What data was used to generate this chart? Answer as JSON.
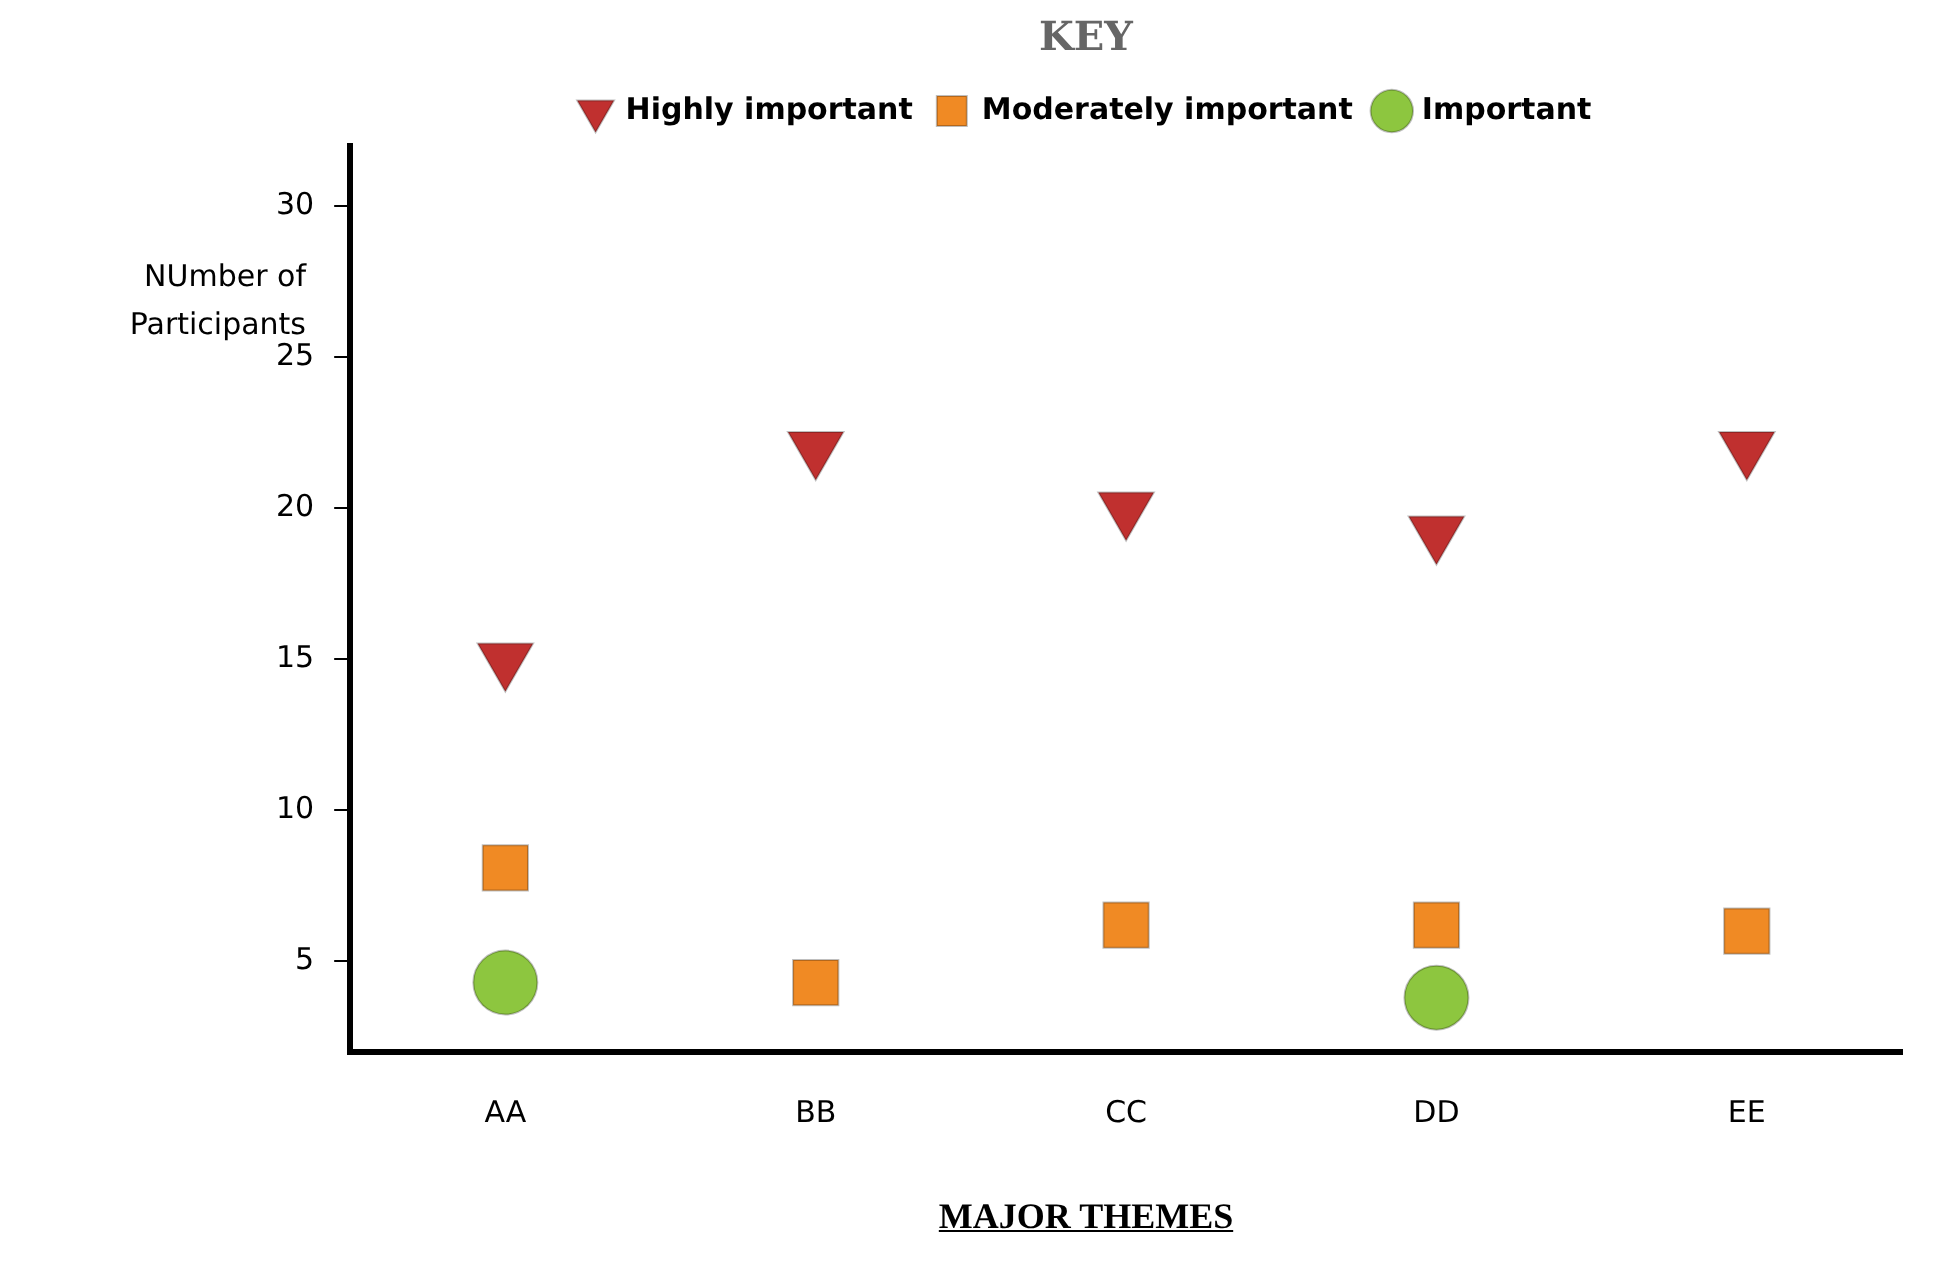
{
  "chart_data": {
    "type": "scatter",
    "xlabel": "MAJOR THEMES",
    "ylabel": "NUmber of Participants",
    "legend_title": "KEY",
    "legend": "top",
    "grid": false,
    "categories": [
      "AA",
      "BB",
      "CC",
      "DD",
      "EE"
    ],
    "ylim": [
      2,
      32
    ],
    "yticks": [
      5,
      10,
      15,
      20,
      25,
      30
    ],
    "series": [
      {
        "name": "Highly important",
        "color": "#c0302f",
        "marker": "triangle",
        "values": [
          15,
          22,
          20,
          19.2,
          22
        ]
      },
      {
        "name": "Moderately important",
        "color": "#f08a24",
        "marker": "square",
        "values": [
          8.1,
          4.3,
          6.2,
          6.2,
          6
        ]
      },
      {
        "name": "Important",
        "color": "#8dc63f",
        "marker": "circle",
        "values": [
          4.3,
          null,
          null,
          3.8,
          null
        ]
      }
    ]
  }
}
